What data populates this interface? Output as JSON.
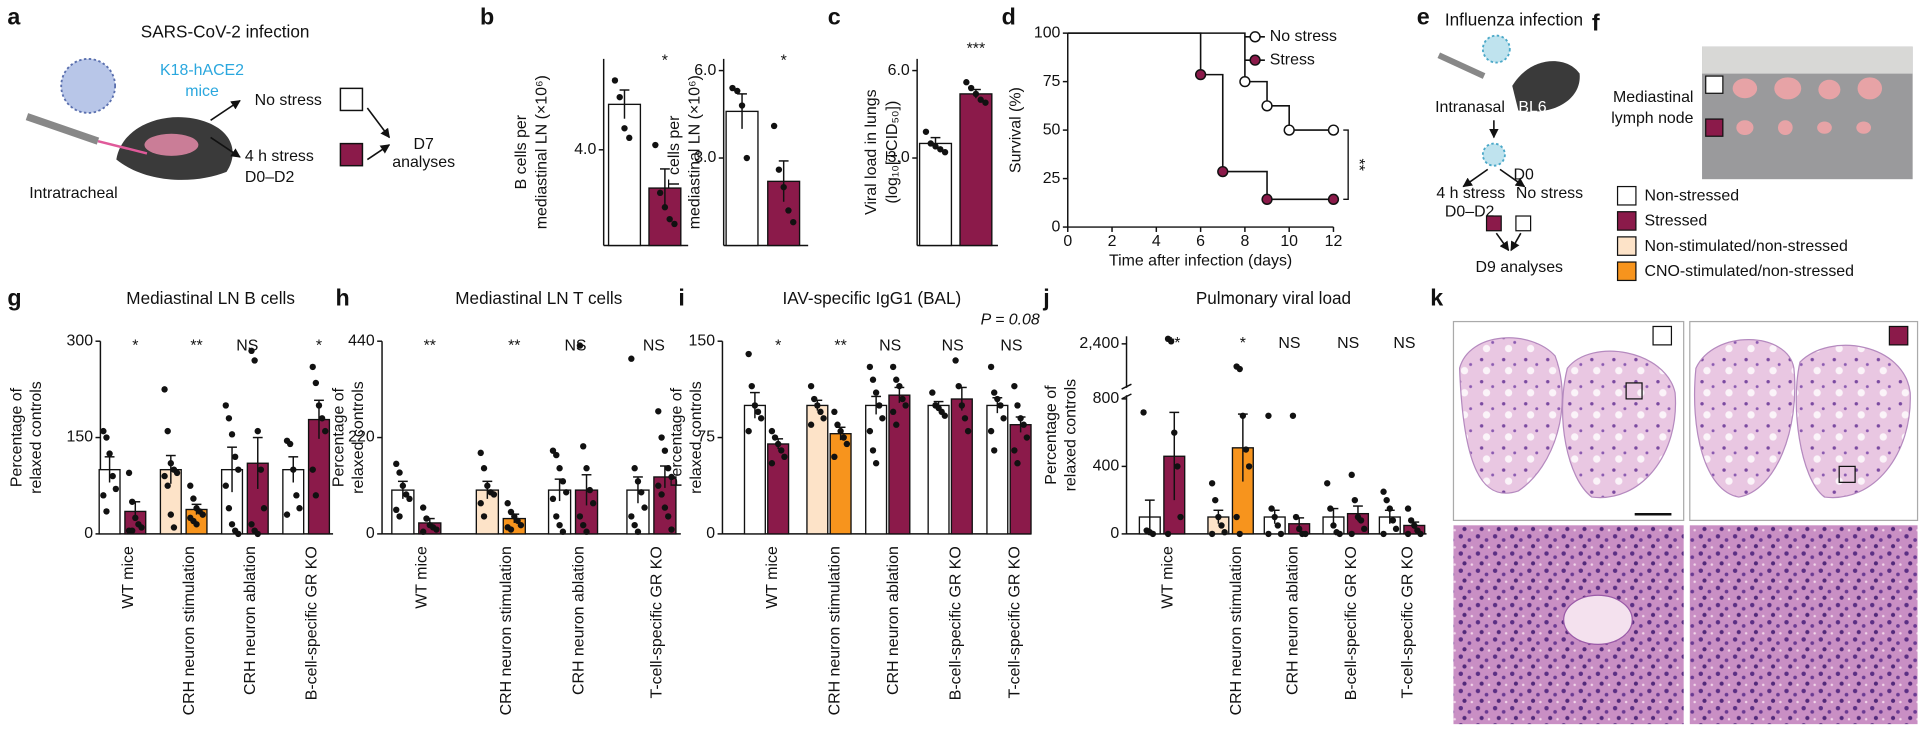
{
  "figure": {
    "letters": [
      "a",
      "b",
      "c",
      "d",
      "e",
      "f",
      "g",
      "h",
      "i",
      "j",
      "k"
    ]
  },
  "a": {
    "title": "SARS-CoV-2 infection",
    "mouse": [
      "K18-hACE2",
      "mice"
    ],
    "no_stress": "No stress",
    "stress": [
      "4 h stress",
      "D0–D2"
    ],
    "analysis": [
      "D7",
      "analyses"
    ],
    "route": "Intratracheal"
  },
  "e": {
    "title": "Influenza infection",
    "route": "Intranasal",
    "strain": "BL6",
    "day": "D0",
    "stress": [
      "4 h stress",
      "D0–D2"
    ],
    "no_stress": "No stress",
    "analysis": "D9 analyses"
  },
  "f": {
    "label": [
      "Mediastinal",
      "lymph node"
    ],
    "legend": [
      {
        "label": "Non-stressed",
        "color": "#ffffff"
      },
      {
        "label": "Stressed",
        "color": "#8b1a4a"
      },
      {
        "label": "Non-stimulated/non-stressed",
        "color": "#fde3c8"
      },
      {
        "label": "CNO-stimulated/non-stressed",
        "color": "#f7941d"
      }
    ]
  },
  "chart_data": [
    {
      "type": "bar_dots",
      "ylabel": [
        "B cells per",
        "mediastinal LN (×10⁶)"
      ],
      "ylim": [
        0,
        7.8
      ],
      "yticks": [
        {
          "value": 4,
          "label": "4.0"
        }
      ],
      "annotations": [
        "*"
      ],
      "series": [
        {
          "colors": [
            "#ffffff"
          ],
          "values": [
            5.9
          ],
          "errors": [
            0.6
          ],
          "points": [
            [
              6.9,
              6.2,
              4.9,
              4.5
            ]
          ]
        },
        {
          "colors": [
            "#8b1a4a"
          ],
          "values": [
            2.4
          ],
          "errors": [
            0.8
          ],
          "points": [
            [
              4.2,
              2.2,
              1.6,
              1.1,
              0.9
            ]
          ]
        }
      ]
    },
    {
      "type": "bar_dots",
      "ylabel": [
        "T cells per",
        "mediastinal LN (×10⁶)"
      ],
      "ylim": [
        0,
        6.4
      ],
      "yticks": [
        {
          "value": 3,
          "label": "3.0"
        },
        {
          "value": 6,
          "label": "6.0"
        }
      ],
      "annotations": [
        "*"
      ],
      "series": [
        {
          "colors": [
            "#ffffff"
          ],
          "values": [
            4.6
          ],
          "errors": [
            0.6
          ],
          "points": [
            [
              5.4,
              5.3,
              4.8,
              3.0
            ]
          ]
        },
        {
          "colors": [
            "#8b1a4a"
          ],
          "values": [
            2.2
          ],
          "errors": [
            0.7
          ],
          "points": [
            [
              4.1,
              2.6,
              2.0,
              1.2,
              0.8
            ]
          ]
        }
      ]
    },
    {
      "type": "bar_dots",
      "ylabel": [
        "Viral load in lungs",
        "(log₁₀[TCID₅₀])"
      ],
      "ylim": [
        0,
        6.4
      ],
      "yticks": [
        {
          "value": 3,
          "label": "3.0"
        },
        {
          "value": 6,
          "label": "6.0"
        }
      ],
      "annotations": [
        "***"
      ],
      "series": [
        {
          "colors": [
            "#ffffff"
          ],
          "values": [
            3.5
          ],
          "errors": [
            0.2
          ],
          "points": [
            [
              3.9,
              3.5,
              3.4,
              3.3,
              3.2
            ]
          ]
        },
        {
          "colors": [
            "#8b1a4a"
          ],
          "values": [
            5.2
          ],
          "errors": [
            0.15
          ],
          "points": [
            [
              5.6,
              5.4,
              5.2,
              5.0,
              4.9
            ]
          ]
        }
      ]
    },
    {
      "type": "step_line",
      "xlabel": "Time after infection (days)",
      "ylabel": "Survival (%)",
      "xlim": [
        0,
        12
      ],
      "xticks": [
        0,
        2,
        4,
        6,
        8,
        10,
        12
      ],
      "ylim": [
        0,
        100
      ],
      "yticks": [
        0,
        25,
        50,
        75,
        100
      ],
      "annotation": "**",
      "legend": "top-right",
      "series": [
        {
          "name": "No stress",
          "color": "#ffffff",
          "x": [
            0,
            8,
            9,
            10,
            12
          ],
          "values": [
            100,
            75,
            62.5,
            50,
            50
          ]
        },
        {
          "name": "Stress",
          "color": "#8b1a4a",
          "x": [
            0,
            6,
            7,
            9,
            12
          ],
          "values": [
            100,
            78.6,
            28.6,
            14.3,
            14.3
          ]
        }
      ]
    },
    {
      "type": "bar_dots",
      "title": "Mediastinal LN B cells",
      "ylabel": [
        "Percentage of",
        "relaxed controls"
      ],
      "ylim": [
        0,
        300
      ],
      "yticks": [
        0,
        150,
        300
      ],
      "categories": [
        "WT mice",
        "CRH neuron stimulation",
        "CRH neuron ablation",
        "B-cell-specific GR KO"
      ],
      "annotations": [
        "*",
        "**",
        "NS",
        "*"
      ],
      "series": [
        {
          "colors": [
            "#ffffff",
            "#fde3c8",
            "#ffffff",
            "#ffffff"
          ],
          "values": [
            100,
            100,
            100,
            100
          ],
          "errors": [
            20,
            22,
            35,
            20
          ],
          "points": [
            [
              160,
              150,
              125,
              90,
              70,
              60,
              35
            ],
            [
              225,
              160,
              110,
              100,
              95,
              90,
              75,
              30,
              10
            ],
            [
              200,
              180,
              155,
              120,
              100,
              75,
              40,
              15,
              5,
              0
            ],
            [
              145,
              140,
              100,
              60,
              40,
              30
            ]
          ]
        },
        {
          "colors": [
            "#8b1a4a",
            "#f7941d",
            "#8b1a4a",
            "#8b1a4a"
          ],
          "values": [
            35,
            38,
            110,
            178
          ],
          "errors": [
            15,
            8,
            40,
            30
          ],
          "points": [
            [
              95,
              50,
              25,
              15,
              10,
              5,
              5
            ],
            [
              75,
              55,
              40,
              35,
              30,
              25,
              20,
              15
            ],
            [
              285,
              270,
              160,
              100,
              40,
              15,
              5,
              0
            ],
            [
              260,
              235,
              200,
              180,
              160,
              100,
              60
            ]
          ]
        }
      ]
    },
    {
      "type": "bar_dots",
      "title": "Mediastinal LN T cells",
      "ylabel": [
        "Percentage of",
        "relaxed controls"
      ],
      "ylim": [
        0,
        440
      ],
      "yticks": [
        0,
        220,
        440
      ],
      "categories": [
        "WT mice",
        "CRH neuron stimulation",
        "CRH neuron ablation",
        "T-cell-specific GR KO"
      ],
      "annotations": [
        "**",
        "**",
        "NS",
        "NS"
      ],
      "series": [
        {
          "colors": [
            "#ffffff",
            "#fde3c8",
            "#ffffff",
            "#ffffff"
          ],
          "values": [
            100,
            100,
            100,
            100
          ],
          "errors": [
            20,
            20,
            25,
            30
          ],
          "points": [
            [
              160,
              140,
              110,
              90,
              80,
              55,
              40
            ],
            [
              185,
              150,
              110,
              95,
              90,
              70,
              40
            ],
            [
              190,
              180,
              150,
              120,
              95,
              80,
              40,
              20,
              5
            ],
            [
              400,
              150,
              120,
              95,
              60,
              40,
              20,
              5
            ]
          ]
        },
        {
          "colors": [
            "#8b1a4a",
            "#f7941d",
            "#8b1a4a",
            "#8b1a4a"
          ],
          "values": [
            25,
            35,
            100,
            130
          ],
          "errors": [
            10,
            10,
            35,
            25
          ],
          "points": [
            [
              60,
              35,
              20,
              15,
              10,
              5
            ],
            [
              70,
              50,
              40,
              30,
              20,
              15,
              10
            ],
            [
              430,
              200,
              150,
              100,
              70,
              40,
              20,
              5
            ],
            [
              280,
              220,
              190,
              150,
              130,
              110,
              90,
              60,
              40,
              10
            ]
          ]
        }
      ]
    },
    {
      "type": "bar_dots",
      "title": "IAV-specific IgG1 (BAL)",
      "ylabel": [
        "Percentage of",
        "relaxed controls"
      ],
      "ylim": [
        0,
        150
      ],
      "yticks": [
        0,
        75,
        150
      ],
      "categories": [
        "WT mice",
        "CRH neuron stimulation",
        "CRH neuron ablation",
        "B-cell-specific GR KO",
        "T-cell-specific GR KO"
      ],
      "annotations": [
        "*",
        "**",
        "NS",
        "NS",
        "NS"
      ],
      "note": "P = 0.08",
      "series": [
        {
          "colors": [
            "#ffffff",
            "#fde3c8",
            "#ffffff",
            "#ffffff",
            "#ffffff"
          ],
          "values": [
            100,
            100,
            100,
            100,
            100
          ],
          "errors": [
            10,
            4,
            7,
            3,
            6
          ],
          "points": [
            [
              140,
              115,
              100,
              95,
              90,
              80
            ],
            [
              115,
              105,
              100,
              95,
              90,
              85
            ],
            [
              130,
              120,
              110,
              100,
              90,
              80,
              65,
              55
            ],
            [
              110,
              100,
              98,
              95,
              92
            ],
            [
              130,
              110,
              105,
              100,
              90,
              80,
              65
            ]
          ]
        },
        {
          "colors": [
            "#8b1a4a",
            "#f7941d",
            "#8b1a4a",
            "#8b1a4a",
            "#8b1a4a"
          ],
          "values": [
            70,
            78,
            108,
            105,
            85
          ],
          "errors": [
            4,
            5,
            6,
            9,
            6
          ],
          "points": [
            [
              80,
              75,
              70,
              65,
              60,
              55
            ],
            [
              95,
              85,
              80,
              75,
              70,
              60
            ],
            [
              130,
              120,
              115,
              105,
              100,
              95,
              85
            ],
            [
              135,
              115,
              100,
              90,
              80
            ],
            [
              115,
              100,
              90,
              85,
              75,
              65,
              55
            ]
          ]
        }
      ]
    },
    {
      "type": "bar_dots",
      "title": "Pulmonary viral load",
      "ylabel": [
        "Percentage of",
        "relaxed controls"
      ],
      "ylim": [
        0,
        2700
      ],
      "ybreak": 800,
      "yticks": [
        0,
        400,
        800,
        {
          "value": 2400,
          "label": "2,400"
        }
      ],
      "categories": [
        "WT mice",
        "CRH neuron stimulation",
        "CRH neuron ablation",
        "B-cell-specific GR KO",
        "T-cell-specific GR KO"
      ],
      "annotations": [
        "**",
        "*",
        "NS",
        "NS",
        "NS"
      ],
      "series": [
        {
          "colors": [
            "#ffffff",
            "#fde3c8",
            "#ffffff",
            "#ffffff",
            "#ffffff"
          ],
          "values": [
            100,
            100,
            100,
            100,
            100
          ],
          "errors": [
            100,
            40,
            40,
            50,
            40
          ],
          "points": [
            [
              720,
              20,
              10,
              0
            ],
            [
              300,
              200,
              100,
              50,
              10,
              0
            ],
            [
              700,
              150,
              100,
              50,
              0,
              0
            ],
            [
              300,
              150,
              50,
              10,
              0
            ],
            [
              250,
              200,
              150,
              80,
              30,
              0
            ]
          ]
        },
        {
          "colors": [
            "#8b1a4a",
            "#f7941d",
            "#8b1a4a",
            "#8b1a4a",
            "#8b1a4a"
          ],
          "values": [
            460,
            510,
            60,
            120,
            50
          ],
          "errors": [
            260,
            200,
            35,
            45,
            20
          ],
          "points": [
            [
              2600,
              2500,
              600,
              400,
              100,
              0
            ],
            [
              1500,
              1400,
              700,
              500,
              400,
              100,
              0
            ],
            [
              700,
              100,
              30,
              0,
              0
            ],
            [
              350,
              200,
              100,
              80,
              30,
              0
            ],
            [
              150,
              80,
              50,
              20,
              0,
              0
            ]
          ]
        }
      ]
    }
  ]
}
